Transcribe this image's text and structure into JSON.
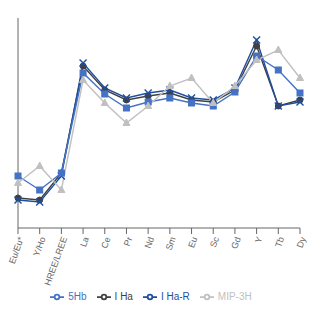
{
  "chart_data": {
    "type": "line",
    "categories": [
      "Eu/Eu*",
      "Y/Ho",
      "HREE/LREE",
      "La",
      "Ce",
      "Pr",
      "Nd",
      "Sm",
      "Eu",
      "Sc",
      "Gd",
      "Y",
      "Tb",
      "Dy"
    ],
    "series": [
      {
        "name": "I Ha",
        "color": "#404040",
        "marker": "circle",
        "values": [
          0.3,
          0.28,
          0.55,
          1.62,
          1.38,
          1.28,
          1.32,
          1.35,
          1.28,
          1.26,
          1.38,
          1.82,
          1.22,
          1.28
        ]
      },
      {
        "name": "I Ha-R",
        "color": "#1f4e9e",
        "marker": "x",
        "values": [
          0.28,
          0.26,
          0.52,
          1.65,
          1.4,
          1.3,
          1.35,
          1.38,
          1.3,
          1.28,
          1.4,
          1.88,
          1.22,
          1.26
        ]
      },
      {
        "name": "5Hb",
        "color": "#4472c4",
        "marker": "square",
        "values": [
          0.52,
          0.38,
          0.55,
          1.55,
          1.34,
          1.2,
          1.26,
          1.3,
          1.25,
          1.22,
          1.36,
          1.72,
          1.58,
          1.35
        ]
      },
      {
        "name": "MIP-3H",
        "color": "#c0c0c0",
        "marker": "triangle",
        "values": [
          0.45,
          0.62,
          0.38,
          1.48,
          1.25,
          1.05,
          1.22,
          1.42,
          1.5,
          1.25,
          1.42,
          1.68,
          1.78,
          1.5
        ]
      }
    ],
    "ylim": [
      0.0,
      2.1
    ],
    "tick_labels": "x",
    "grid": false,
    "legend": "bottom"
  }
}
